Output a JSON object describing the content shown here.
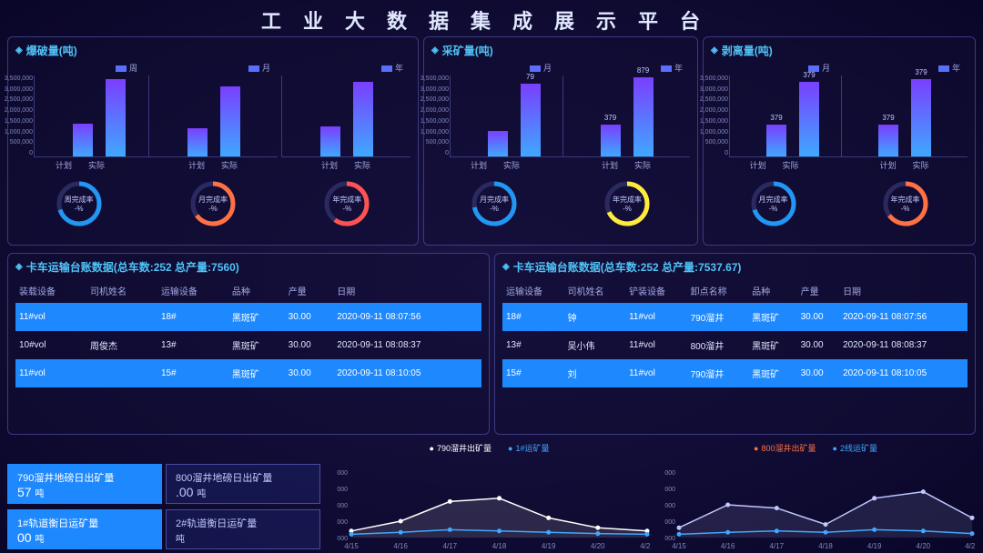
{
  "title": "工业大数据集成展示平台",
  "colors": {
    "accent": "#4fc3f7",
    "bar_grad_top": "#7a3fff",
    "bar_grad_bot": "#3fa8ff",
    "row_hl": "#1e88ff",
    "donut_bg": "#2a2a60"
  },
  "top_panels": [
    {
      "title": "爆破量(吨)",
      "charts": [
        {
          "legend": "周",
          "xlabels": [
            "计划",
            "实际"
          ],
          "values": [
            1400000,
            3300000
          ],
          "labels": [
            "",
            ""
          ]
        },
        {
          "legend": "月",
          "xlabels": [
            "计划",
            "实际"
          ],
          "values": [
            1200000,
            3000000
          ],
          "labels": [
            "",
            ""
          ]
        },
        {
          "legend": "年",
          "xlabels": [
            "计划",
            "实际"
          ],
          "values": [
            1300000,
            3200000
          ],
          "labels": [
            "",
            ""
          ]
        }
      ],
      "y_max": 3500000,
      "y_step": 500000,
      "donuts": [
        {
          "label": "周完成率",
          "value": "-%",
          "pct": 70,
          "color": "#2196f3"
        },
        {
          "label": "月完成率",
          "value": "-%",
          "pct": 65,
          "color": "#ff7043"
        },
        {
          "label": "年完成率",
          "value": "-%",
          "pct": 60,
          "color": "#ff5252"
        }
      ]
    },
    {
      "title": "采矿量(吨)",
      "charts": [
        {
          "legend": "月",
          "xlabels": [
            "计划",
            "实际"
          ],
          "values": [
            1100000,
            3100000
          ],
          "labels": [
            "",
            "79"
          ]
        },
        {
          "legend": "年",
          "xlabels": [
            "计划",
            "实际"
          ],
          "values": [
            1379000,
            3400000
          ],
          "labels": [
            "379",
            "879"
          ]
        }
      ],
      "y_max": 3500000,
      "y_step": 500000,
      "donuts": [
        {
          "label": "月完成率",
          "value": "-%",
          "pct": 72,
          "color": "#2196f3"
        },
        {
          "label": "年完成率",
          "value": "-%",
          "pct": 68,
          "color": "#ffeb3b"
        }
      ]
    },
    {
      "title": "剥离量(吨)",
      "charts": [
        {
          "legend": "月",
          "xlabels": [
            "计划",
            "实际"
          ],
          "values": [
            1379000,
            3200000
          ],
          "labels": [
            "379",
            "379"
          ]
        },
        {
          "legend": "年",
          "xlabels": [
            "计划",
            "实际"
          ],
          "values": [
            1379000,
            3300000
          ],
          "labels": [
            "379",
            "379"
          ]
        }
      ],
      "y_max": 3500000,
      "y_step": 500000,
      "donuts": [
        {
          "label": "月完成率",
          "value": "-%",
          "pct": 70,
          "color": "#2196f3"
        },
        {
          "label": "年完成率",
          "value": "-%",
          "pct": 65,
          "color": "#ff7043"
        }
      ]
    }
  ],
  "tables": [
    {
      "title": "卡车运输台账数据(总车数:252 总产量:7560)",
      "columns": [
        "装载设备",
        "司机姓名",
        "运输设备",
        "品种",
        "产量",
        "日期"
      ],
      "rows": [
        {
          "hl": true,
          "cells": [
            "11#vol",
            "",
            "18#",
            "黑斑矿",
            "30.00",
            "2020-09-11 08:07:56"
          ]
        },
        {
          "hl": false,
          "cells": [
            "10#vol",
            "周俊杰",
            "13#",
            "黑斑矿",
            "30.00",
            "2020-09-11 08:08:37"
          ]
        },
        {
          "hl": true,
          "cells": [
            "11#vol",
            "",
            "15#",
            "黑斑矿",
            "30.00",
            "2020-09-11 08:10:05"
          ]
        }
      ]
    },
    {
      "title": "卡车运输台账数据(总车数:252 总产量:7537.67)",
      "columns": [
        "运输设备",
        "司机姓名",
        "铲装设备",
        "卸点名称",
        "品种",
        "产量",
        "日期"
      ],
      "rows": [
        {
          "hl": true,
          "cells": [
            "18#",
            "钟",
            "11#vol",
            "790溜井",
            "黑斑矿",
            "30.00",
            "2020-09-11 08:07:56"
          ]
        },
        {
          "hl": false,
          "cells": [
            "13#",
            "吴小伟",
            "11#vol",
            "800溜井",
            "黑斑矿",
            "30.00",
            "2020-09-11 08:08:37"
          ]
        },
        {
          "hl": true,
          "cells": [
            "15#",
            "刘",
            "11#vol",
            "790溜井",
            "黑斑矿",
            "30.00",
            "2020-09-11 08:10:05"
          ]
        }
      ]
    }
  ],
  "stat_boxes": [
    {
      "hl": true,
      "label": "790溜井地磅日出矿量",
      "value": "57",
      "unit": "吨"
    },
    {
      "hl": false,
      "label": "800溜井地磅日出矿量",
      "value": ".00",
      "unit": "吨"
    },
    {
      "hl": true,
      "label": "1#轨道衡日运矿量",
      "value": "00",
      "unit": "吨"
    },
    {
      "hl": false,
      "label": "2#轨道衡日运矿量",
      "value": "",
      "unit": "吨"
    }
  ],
  "line_charts": [
    {
      "legends": [
        {
          "label": "790溜井出矿量",
          "color": "#ffffff"
        },
        {
          "label": "1#运矿量",
          "color": "#3fa8ff"
        }
      ],
      "x": [
        "4/15",
        "4/16",
        "4/17",
        "4/18",
        "4/19",
        "4/20",
        "4/21"
      ],
      "y_label_prefix": "000",
      "series": [
        {
          "color": "#ffffff",
          "points": [
            0.1,
            0.25,
            0.55,
            0.6,
            0.3,
            0.15,
            0.1
          ]
        },
        {
          "color": "#3fa8ff",
          "points": [
            0.05,
            0.08,
            0.12,
            0.1,
            0.08,
            0.06,
            0.05
          ]
        }
      ]
    },
    {
      "legends": [
        {
          "label": "800溜井出矿量",
          "color": "#ff7043"
        },
        {
          "label": "2线运矿量",
          "color": "#3fa8ff"
        }
      ],
      "x": [
        "4/15",
        "4/16",
        "4/17",
        "4/18",
        "4/19",
        "4/20",
        "4/21"
      ],
      "y_label_prefix": "000",
      "series": [
        {
          "color": "#c0c8ff",
          "points": [
            0.15,
            0.5,
            0.45,
            0.2,
            0.6,
            0.7,
            0.3
          ]
        },
        {
          "color": "#3fa8ff",
          "points": [
            0.05,
            0.08,
            0.1,
            0.08,
            0.12,
            0.1,
            0.06
          ]
        }
      ]
    }
  ]
}
